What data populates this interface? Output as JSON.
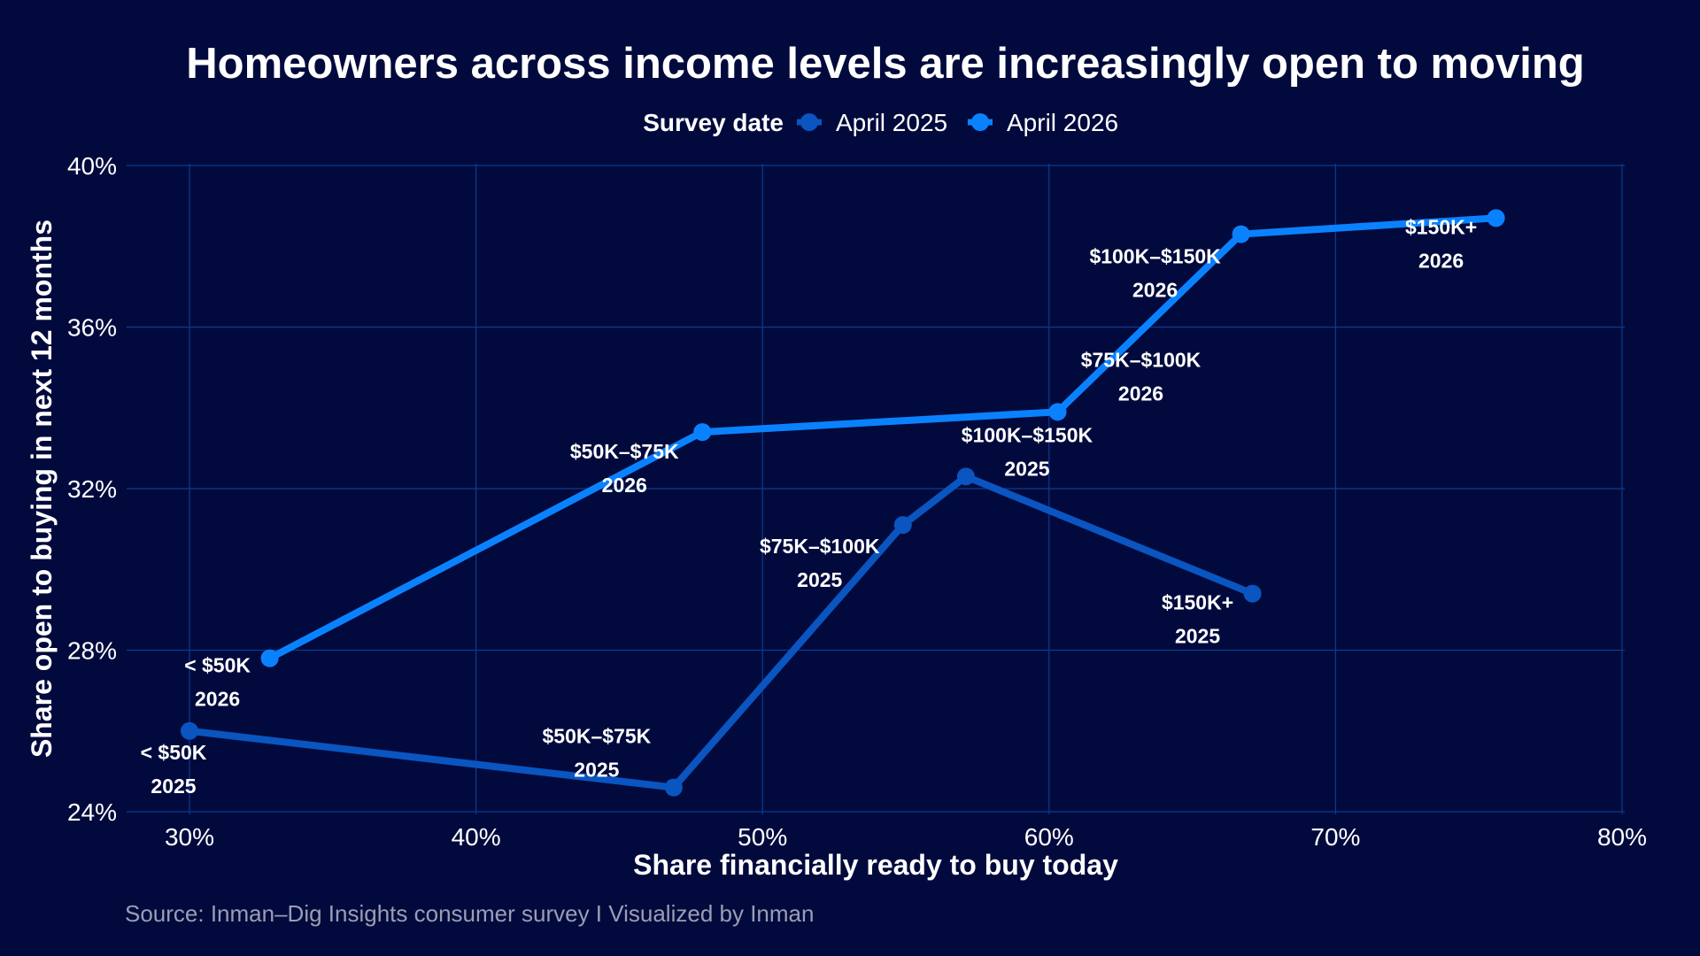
{
  "chart_data": {
    "type": "line",
    "title": "Homeowners across income levels are increasingly open to moving",
    "xlabel": "Share financially ready to buy today",
    "ylabel": "Share open to buying in next 12 months",
    "xlim": [
      30,
      80
    ],
    "ylim": [
      24,
      40
    ],
    "x_ticks": [
      "30%",
      "40%",
      "50%",
      "60%",
      "70%",
      "80%"
    ],
    "y_ticks": [
      "24%",
      "28%",
      "32%",
      "36%",
      "40%"
    ],
    "grid": true,
    "legend": {
      "title": "Survey date",
      "placement": "top"
    },
    "source": "Source: Inman–Dig Insights consumer survey I Visualized by Inman",
    "series": [
      {
        "name": "April 2025",
        "color": "#0a55c0",
        "points": [
          {
            "label": "< $50K",
            "year": "2025",
            "x": 30.0,
            "y": 26.0
          },
          {
            "label": "$50K–$75K",
            "year": "2025",
            "x": 46.9,
            "y": 24.6
          },
          {
            "label": "$75K–$100K",
            "year": "2025",
            "x": 54.9,
            "y": 31.1
          },
          {
            "label": "$100K–$150K",
            "year": "2025",
            "x": 57.1,
            "y": 32.3
          },
          {
            "label": "$150K+",
            "year": "2025",
            "x": 67.1,
            "y": 29.4
          }
        ]
      },
      {
        "name": "April 2026",
        "color": "#0a82ff",
        "points": [
          {
            "label": "< $50K",
            "year": "2026",
            "x": 32.8,
            "y": 27.8
          },
          {
            "label": "$50K–$75K",
            "year": "2026",
            "x": 47.9,
            "y": 33.4
          },
          {
            "label": "$75K–$100K",
            "year": "2026",
            "x": 60.3,
            "y": 33.9
          },
          {
            "label": "$100K–$150K",
            "year": "2026",
            "x": 66.7,
            "y": 38.3
          },
          {
            "label": "$150K+",
            "year": "2026",
            "x": 75.6,
            "y": 38.7
          }
        ]
      }
    ]
  }
}
